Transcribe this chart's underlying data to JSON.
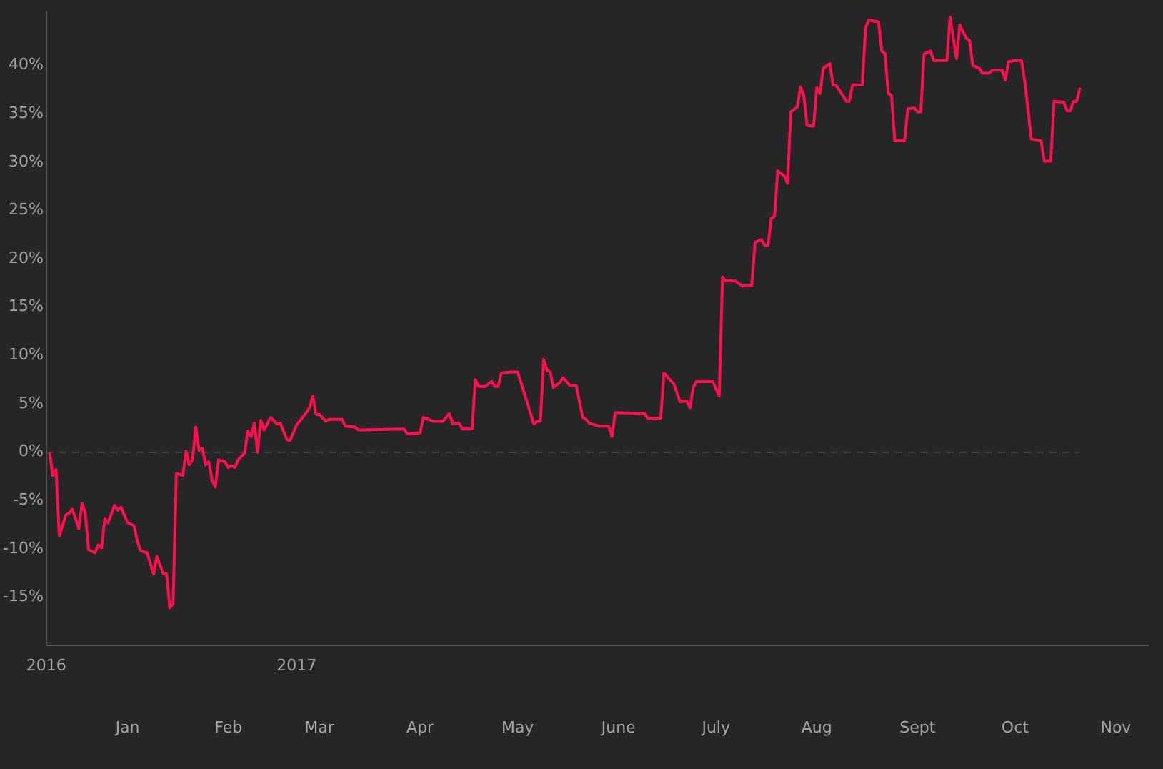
{
  "chart_data": {
    "type": "line",
    "x": [
      "2016-12-08",
      "2016-12-09",
      "2016-12-10",
      "2016-12-11",
      "2016-12-13",
      "2016-12-14",
      "2016-12-15",
      "2016-12-17",
      "2016-12-18",
      "2016-12-19",
      "2016-12-20",
      "2016-12-22",
      "2016-12-23",
      "2016-12-24",
      "2016-12-25",
      "2016-12-26",
      "2016-12-28",
      "2016-12-29",
      "2016-12-30",
      "2017-01-01",
      "2017-01-03",
      "2017-01-04",
      "2017-01-05",
      "2017-01-07",
      "2017-01-09",
      "2017-01-10",
      "2017-01-12",
      "2017-01-13",
      "2017-01-14",
      "2017-01-15",
      "2017-01-16",
      "2017-01-18",
      "2017-01-19",
      "2017-01-20",
      "2017-01-21",
      "2017-01-22",
      "2017-01-23",
      "2017-01-24",
      "2017-01-25",
      "2017-01-26",
      "2017-01-27",
      "2017-01-28",
      "2017-01-29",
      "2017-01-31",
      "2017-02-01",
      "2017-02-02",
      "2017-02-03",
      "2017-02-04",
      "2017-02-06",
      "2017-02-07",
      "2017-02-08",
      "2017-02-09",
      "2017-02-10",
      "2017-02-11",
      "2017-02-12",
      "2017-02-14",
      "2017-02-16",
      "2017-02-17",
      "2017-02-19",
      "2017-02-20",
      "2017-02-22",
      "2017-02-25",
      "2017-02-26",
      "2017-02-27",
      "2017-02-28",
      "2017-03-01",
      "2017-03-03",
      "2017-03-04",
      "2017-03-08",
      "2017-03-09",
      "2017-03-12",
      "2017-03-13",
      "2017-03-27",
      "2017-03-28",
      "2017-04-01",
      "2017-04-02",
      "2017-04-05",
      "2017-04-08",
      "2017-04-10",
      "2017-04-11",
      "2017-04-13",
      "2017-04-14",
      "2017-04-17",
      "2017-04-18",
      "2017-04-19",
      "2017-04-21",
      "2017-04-23",
      "2017-04-24",
      "2017-04-25",
      "2017-04-26",
      "2017-04-29",
      "2017-05-01",
      "2017-05-06",
      "2017-05-07",
      "2017-05-08",
      "2017-05-09",
      "2017-05-10",
      "2017-05-11",
      "2017-05-12",
      "2017-05-14",
      "2017-05-15",
      "2017-05-17",
      "2017-05-19",
      "2017-05-21",
      "2017-05-22",
      "2017-05-23",
      "2017-05-26",
      "2017-05-29",
      "2017-05-30",
      "2017-05-31",
      "2017-06-09",
      "2017-06-10",
      "2017-06-14",
      "2017-06-15",
      "2017-06-17",
      "2017-06-18",
      "2017-06-20",
      "2017-06-22",
      "2017-06-23",
      "2017-06-24",
      "2017-06-25",
      "2017-06-30",
      "2017-07-02",
      "2017-07-03",
      "2017-07-04",
      "2017-07-07",
      "2017-07-09",
      "2017-07-12",
      "2017-07-13",
      "2017-07-15",
      "2017-07-16",
      "2017-07-17",
      "2017-07-18",
      "2017-07-19",
      "2017-07-20",
      "2017-07-22",
      "2017-07-23",
      "2017-07-24",
      "2017-07-26",
      "2017-07-27",
      "2017-07-28",
      "2017-07-29",
      "2017-07-31",
      "2017-08-01",
      "2017-08-02",
      "2017-08-03",
      "2017-08-05",
      "2017-08-06",
      "2017-08-07",
      "2017-08-09",
      "2017-08-10",
      "2017-08-11",
      "2017-08-12",
      "2017-08-15",
      "2017-08-16",
      "2017-08-17",
      "2017-08-20",
      "2017-08-21",
      "2017-08-22",
      "2017-08-23",
      "2017-08-24",
      "2017-08-25",
      "2017-08-28",
      "2017-08-29",
      "2017-08-31",
      "2017-09-01",
      "2017-09-02",
      "2017-09-03",
      "2017-09-05",
      "2017-09-06",
      "2017-09-10",
      "2017-09-11",
      "2017-09-13",
      "2017-09-14",
      "2017-09-16",
      "2017-09-17",
      "2017-09-18",
      "2017-09-20",
      "2017-09-21",
      "2017-09-23",
      "2017-09-24",
      "2017-09-27",
      "2017-09-28",
      "2017-09-29",
      "2017-10-01",
      "2017-10-03",
      "2017-10-04",
      "2017-10-06",
      "2017-10-09",
      "2017-10-10",
      "2017-10-12",
      "2017-10-13",
      "2017-10-16",
      "2017-10-17",
      "2017-10-18",
      "2017-10-19",
      "2017-10-20",
      "2017-10-21"
    ],
    "series": [
      {
        "color": "#ff0f4f",
        "values": [
          0,
          -2.4,
          -1.8,
          -8.7,
          -6.5,
          -6.3,
          -5.9,
          -7.9,
          -5.3,
          -6.3,
          -10.1,
          -10.4,
          -9.6,
          -9.9,
          -6.9,
          -7.3,
          -5.5,
          -6.0,
          -5.7,
          -7.3,
          -7.6,
          -9.2,
          -10.2,
          -10.4,
          -12.6,
          -10.8,
          -12.6,
          -12.6,
          -16.1,
          -15.7,
          -2.2,
          -2.4,
          0.1,
          -1.3,
          -0.8,
          2.6,
          0.2,
          0.4,
          -1.3,
          -1.0,
          -2.9,
          -3.6,
          -0.8,
          -1.0,
          -1.6,
          -1.4,
          -1.6,
          -0.8,
          -0.1,
          2.2,
          1.6,
          3.0,
          0.0,
          3.3,
          2.3,
          3.6,
          2.9,
          3.0,
          1.3,
          1.2,
          2.8,
          4.1,
          4.6,
          5.8,
          3.9,
          3.9,
          3.2,
          3.4,
          3.4,
          2.7,
          2.6,
          2.3,
          2.4,
          1.9,
          2.0,
          3.6,
          3.2,
          3.2,
          4.0,
          3.0,
          3.0,
          2.4,
          2.4,
          7.5,
          6.8,
          6.8,
          7.3,
          6.8,
          6.8,
          8.2,
          8.3,
          8.3,
          2.9,
          3.2,
          3.2,
          9.6,
          8.5,
          8.3,
          6.7,
          7.2,
          7.7,
          6.9,
          6.9,
          3.6,
          3.4,
          3.0,
          2.7,
          2.7,
          1.6,
          4.1,
          4.0,
          3.5,
          3.5,
          8.2,
          7.4,
          7.1,
          5.2,
          5.3,
          4.6,
          6.7,
          7.3,
          7.3,
          5.8,
          18.1,
          17.7,
          17.7,
          17.2,
          17.2,
          21.7,
          22.0,
          21.4,
          21.4,
          24.2,
          24.4,
          29.1,
          28.6,
          27.8,
          35.2,
          35.7,
          37.8,
          36.9,
          33.8,
          33.7,
          37.7,
          37.1,
          39.7,
          40.2,
          38.0,
          37.9,
          36.9,
          36.3,
          36.3,
          38.0,
          38.0,
          43.9,
          44.7,
          44.5,
          41.5,
          41.2,
          37.1,
          36.9,
          32.2,
          32.2,
          35.5,
          35.6,
          35.2,
          35.2,
          41.2,
          41.5,
          40.5,
          40.5,
          45.0,
          40.7,
          44.2,
          42.8,
          42.6,
          40.0,
          39.7,
          39.2,
          39.2,
          39.5,
          39.5,
          38.5,
          40.4,
          40.5,
          40.5,
          38.3,
          32.4,
          32.2,
          30.1,
          30.1,
          36.3,
          36.2,
          35.3,
          35.3,
          36.3,
          36.3,
          37.7
        ]
      }
    ],
    "xlim": [
      "2016-12-07",
      "2017-11-11"
    ],
    "x2lim": [
      "2016-12-07",
      "2017-11-11"
    ],
    "x2ticks": [
      {
        "value": "2016-12-07",
        "label": "2016"
      },
      {
        "value": "2017-02-22",
        "label": "2017"
      }
    ],
    "xticks": [
      {
        "value": "2017-01-01",
        "label": "Jan"
      },
      {
        "value": "2017-02-01",
        "label": "Feb"
      },
      {
        "value": "2017-03-01",
        "label": "Mar"
      },
      {
        "value": "2017-04-01",
        "label": "Apr"
      },
      {
        "value": "2017-05-01",
        "label": "May"
      },
      {
        "value": "2017-06-01",
        "label": "June"
      },
      {
        "value": "2017-07-01",
        "label": "July"
      },
      {
        "value": "2017-08-01",
        "label": "Aug"
      },
      {
        "value": "2017-09-01",
        "label": "Sept"
      },
      {
        "value": "2017-10-01",
        "label": "Oct"
      },
      {
        "value": "2017-11-01",
        "label": "Nov"
      }
    ],
    "ylim": [
      -20,
      45.5
    ],
    "yticks": [
      {
        "value": -15,
        "label": "-15%"
      },
      {
        "value": -10,
        "label": "-10%"
      },
      {
        "value": -5,
        "label": "-5%"
      },
      {
        "value": 0,
        "label": "0%"
      },
      {
        "value": 5,
        "label": "5%"
      },
      {
        "value": 10,
        "label": "10%"
      },
      {
        "value": 15,
        "label": "15%"
      },
      {
        "value": 20,
        "label": "20%"
      },
      {
        "value": 25,
        "label": "25%"
      },
      {
        "value": 30,
        "label": "30%"
      },
      {
        "value": 35,
        "label": "35%"
      },
      {
        "value": 40,
        "label": "40%"
      }
    ],
    "ref_lines": [
      {
        "axis": "y",
        "value": 0,
        "color": "#4a4a4a",
        "line_style": "dashed"
      }
    ],
    "grid": false,
    "legend": false,
    "marker": "none",
    "line_style": "solid"
  }
}
